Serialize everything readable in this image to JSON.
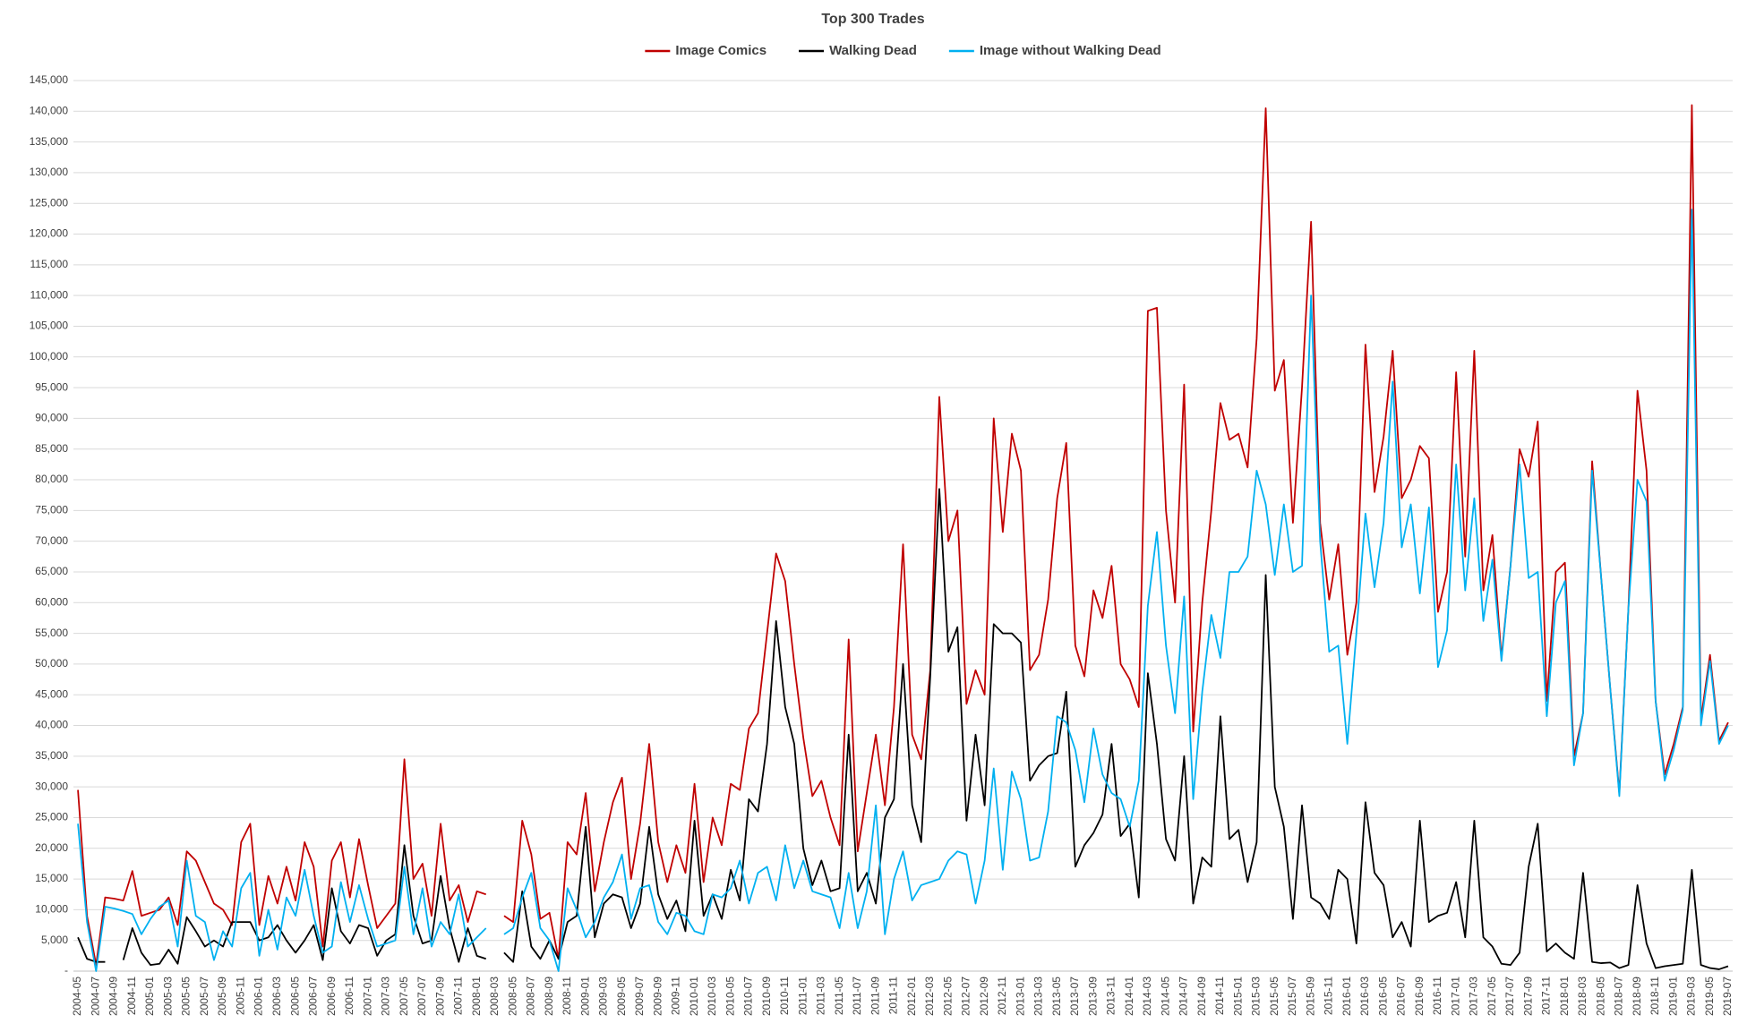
{
  "chart_data": {
    "type": "line",
    "title": "Top 300 Trades",
    "legend": "top",
    "grid": true,
    "categories": [
      "2004-05",
      null,
      "2004-07",
      null,
      "2004-09",
      null,
      "2004-11",
      null,
      "2005-01",
      null,
      "2005-03",
      null,
      "2005-05",
      null,
      "2005-07",
      null,
      "2005-09",
      null,
      "2005-11",
      null,
      "2006-01",
      null,
      "2006-03",
      null,
      "2006-05",
      null,
      "2006-07",
      null,
      "2006-09",
      null,
      "2006-11",
      null,
      "2007-01",
      null,
      "2007-03",
      null,
      "2007-05",
      null,
      "2007-07",
      null,
      "2007-09",
      null,
      "2007-11",
      null,
      "2008-01",
      null,
      "2008-03",
      null,
      "2008-05",
      null,
      "2008-07",
      null,
      "2008-09",
      null,
      "2008-11",
      null,
      "2009-01",
      null,
      "2009-03",
      null,
      "2009-05",
      null,
      "2009-07",
      null,
      "2009-09",
      null,
      "2009-11",
      null,
      "2010-01",
      null,
      "2010-03",
      null,
      "2010-05",
      null,
      "2010-07",
      null,
      "2010-09",
      null,
      "2010-11",
      null,
      "2011-01",
      null,
      "2011-03",
      null,
      "2011-05",
      null,
      "2011-07",
      null,
      "2011-09",
      null,
      "2011-11",
      null,
      "2012-01",
      null,
      "2012-03",
      null,
      "2012-05",
      null,
      "2012-07",
      null,
      "2012-09",
      null,
      "2012-11",
      null,
      "2013-01",
      null,
      "2013-03",
      null,
      "2013-05",
      null,
      "2013-07",
      null,
      "2013-09",
      null,
      "2013-11",
      null,
      "2014-01",
      null,
      "2014-03",
      null,
      "2014-05",
      null,
      "2014-07",
      null,
      "2014-09",
      null,
      "2014-11",
      null,
      "2015-01",
      null,
      "2015-03",
      null,
      "2015-05",
      null,
      "2015-07",
      null,
      "2015-09",
      null,
      "2015-11",
      null,
      "2016-01",
      null,
      "2016-03",
      null,
      "2016-05",
      null,
      "2016-07",
      null,
      "2016-09",
      null,
      "2016-11",
      null,
      "2017-01",
      null,
      "2017-03",
      null,
      "2017-05",
      null,
      "2017-07",
      null,
      "2017-09",
      null,
      "2017-11",
      null,
      "2018-01",
      null,
      "2018-03",
      null,
      "2018-05",
      null,
      "2018-07",
      null,
      "2018-09",
      null,
      "2018-11",
      null,
      "2019-01",
      null,
      "2019-03",
      null,
      "2019-05",
      null,
      "2019-07"
    ],
    "series": [
      {
        "name": "Image Comics",
        "color": "#c00000",
        "values": [
          29500,
          9000,
          1000,
          12000,
          11800,
          11500,
          16300,
          9000,
          9500,
          10000,
          12000,
          7500,
          19500,
          18000,
          14500,
          11000,
          10000,
          7500,
          21000,
          24000,
          7500,
          15500,
          11000,
          17000,
          11500,
          21000,
          17000,
          4000,
          18000,
          21000,
          12000,
          21500,
          14000,
          7000,
          9000,
          11000,
          34500,
          15000,
          17500,
          9000,
          24000,
          11500,
          14000,
          8000,
          13000,
          12500,
          null,
          9000,
          8000,
          24500,
          19000,
          8500,
          9500,
          2000,
          21000,
          19000,
          29000,
          13000,
          21000,
          27500,
          31500,
          15000,
          24000,
          37000,
          21000,
          14500,
          20500,
          16000,
          30500,
          14500,
          25000,
          20500,
          30500,
          29500,
          39500,
          42000,
          55000,
          68000,
          63500,
          50000,
          38000,
          28500,
          31000,
          25000,
          20500,
          54000,
          19500,
          29000,
          38500,
          27000,
          43000,
          69500,
          38500,
          34500,
          49000,
          93500,
          70000,
          75000,
          43500,
          49000,
          45000,
          90000,
          71500,
          87500,
          81500,
          49000,
          51500,
          60500,
          77000,
          86000,
          53000,
          48000,
          62000,
          57500,
          66000,
          50000,
          47500,
          43000,
          107500,
          108000,
          75000,
          60000,
          95500,
          39000,
          60000,
          75000,
          92500,
          86500,
          87500,
          82000,
          103000,
          140500,
          94500,
          99500,
          73000,
          95000,
          122000,
          73000,
          60500,
          69500,
          51500,
          60000,
          102000,
          78000,
          87000,
          101000,
          77000,
          80000,
          85500,
          83500,
          58500,
          65000,
          97500,
          67500,
          101000,
          62000,
          71000,
          51000,
          66000,
          85000,
          80500,
          89500,
          44000,
          65000,
          66500,
          35000,
          42000,
          83000,
          64000,
          46000,
          29000,
          59000,
          94500,
          81500,
          44000,
          32000,
          37000,
          43000,
          141000,
          41000,
          51500,
          37500,
          40500
        ]
      },
      {
        "name": "Walking Dead",
        "color": "#000000",
        "values": [
          5500,
          2000,
          1500,
          1500,
          null,
          1800,
          7000,
          3000,
          1000,
          1200,
          3500,
          1200,
          8800,
          6500,
          4000,
          5000,
          4000,
          8000,
          8000,
          8000,
          5000,
          5500,
          7500,
          5000,
          3000,
          5000,
          7500,
          1800,
          13500,
          6500,
          4500,
          7500,
          7000,
          2500,
          5000,
          6000,
          20500,
          9000,
          4500,
          5000,
          15500,
          7000,
          1500,
          7000,
          2500,
          2000,
          null,
          3000,
          1500,
          13000,
          4000,
          2000,
          5000,
          2000,
          8000,
          9000,
          23500,
          5500,
          11000,
          12500,
          12000,
          7000,
          11000,
          23500,
          12500,
          8500,
          11500,
          6500,
          24500,
          9000,
          12500,
          8500,
          16500,
          11500,
          28000,
          26000,
          37000,
          57000,
          43000,
          37000,
          20000,
          14000,
          18000,
          13000,
          13500,
          38500,
          13000,
          16000,
          11000,
          25000,
          28000,
          50000,
          27000,
          21000,
          48000,
          78500,
          52000,
          56000,
          24500,
          38500,
          27000,
          56500,
          55000,
          55000,
          53500,
          31000,
          33500,
          35000,
          35500,
          45500,
          17000,
          20500,
          22500,
          25500,
          37000,
          22000,
          24000,
          12000,
          48500,
          37000,
          21500,
          18000,
          35000,
          11000,
          18500,
          17000,
          41500,
          21500,
          23000,
          14500,
          21000,
          64500,
          30000,
          23500,
          8500,
          27000,
          12000,
          11000,
          8500,
          16500,
          15000,
          4500,
          27500,
          16000,
          14000,
          5500,
          8000,
          4000,
          24500,
          8000,
          9000,
          9500,
          14500,
          5500,
          24500,
          5500,
          4000,
          1200,
          1000,
          3000,
          17000,
          24000,
          3200,
          4500,
          3000,
          2000,
          16000,
          1500,
          1300,
          1400,
          500,
          1000,
          14000,
          4500,
          500,
          800,
          1000,
          1200,
          16500,
          1000,
          500,
          300,
          800
        ]
      },
      {
        "name": "Image without Walking Dead",
        "color": "#00b0f0",
        "values": [
          24000,
          8000,
          0,
          10500,
          10200,
          9800,
          9300,
          6000,
          8500,
          10500,
          11500,
          4000,
          18000,
          9000,
          8000,
          1800,
          6500,
          4000,
          13500,
          16000,
          2500,
          10000,
          3500,
          12000,
          9000,
          16500,
          9000,
          3000,
          4000,
          14500,
          8000,
          14000,
          8500,
          4000,
          4500,
          5000,
          17000,
          6000,
          13500,
          4000,
          8000,
          6000,
          12500,
          4000,
          5500,
          7000,
          null,
          6000,
          7000,
          12000,
          16000,
          7000,
          5000,
          0,
          13500,
          10000,
          5500,
          8000,
          12000,
          14500,
          19000,
          8500,
          13500,
          14000,
          8000,
          6000,
          9500,
          9000,
          6500,
          6000,
          12500,
          12000,
          13500,
          18000,
          11000,
          16000,
          17000,
          11500,
          20500,
          13500,
          18000,
          13000,
          12500,
          12000,
          7000,
          16000,
          7000,
          13000,
          27000,
          6000,
          15000,
          19500,
          11500,
          14000,
          14500,
          15000,
          18000,
          19500,
          19000,
          11000,
          18000,
          33000,
          16500,
          32500,
          28000,
          18000,
          18500,
          26000,
          41500,
          40500,
          36000,
          27500,
          39500,
          32000,
          29000,
          28000,
          23500,
          31000,
          59500,
          71500,
          53000,
          42000,
          61000,
          28000,
          45500,
          58000,
          51000,
          65000,
          65000,
          67500,
          81500,
          76000,
          64500,
          76000,
          65000,
          66000,
          110000,
          70000,
          52000,
          53000,
          37000,
          55000,
          74500,
          62500,
          73000,
          96000,
          69000,
          76000,
          61500,
          75500,
          49500,
          55500,
          82500,
          62000,
          77000,
          57000,
          67000,
          50500,
          66000,
          82500,
          64000,
          65000,
          41500,
          60000,
          63500,
          33500,
          42000,
          81500,
          64000,
          46000,
          28500,
          59000,
          80000,
          76500,
          44000,
          31000,
          36000,
          42500,
          124000,
          40000,
          50500,
          37000,
          40000
        ]
      }
    ],
    "ylim": [
      0,
      145000
    ],
    "yticks": [
      {
        "value": 0,
        "label": "-"
      },
      {
        "value": 5000,
        "label": "5,000"
      },
      {
        "value": 10000,
        "label": "10,000"
      },
      {
        "value": 15000,
        "label": "15,000"
      },
      {
        "value": 20000,
        "label": "20,000"
      },
      {
        "value": 25000,
        "label": "25,000"
      },
      {
        "value": 30000,
        "label": "30,000"
      },
      {
        "value": 35000,
        "label": "35,000"
      },
      {
        "value": 40000,
        "label": "40,000"
      },
      {
        "value": 45000,
        "label": "45,000"
      },
      {
        "value": 50000,
        "label": "50,000"
      },
      {
        "value": 55000,
        "label": "55,000"
      },
      {
        "value": 60000,
        "label": "60,000"
      },
      {
        "value": 65000,
        "label": "65,000"
      },
      {
        "value": 70000,
        "label": "70,000"
      },
      {
        "value": 75000,
        "label": "75,000"
      },
      {
        "value": 80000,
        "label": "80,000"
      },
      {
        "value": 85000,
        "label": "85,000"
      },
      {
        "value": 90000,
        "label": "90,000"
      },
      {
        "value": 95000,
        "label": "95,000"
      },
      {
        "value": 100000,
        "label": "100,000"
      },
      {
        "value": 105000,
        "label": "105,000"
      },
      {
        "value": 110000,
        "label": "110,000"
      },
      {
        "value": 115000,
        "label": "115,000"
      },
      {
        "value": 120000,
        "label": "120,000"
      },
      {
        "value": 125000,
        "label": "125,000"
      },
      {
        "value": 130000,
        "label": "130,000"
      },
      {
        "value": 135000,
        "label": "135,000"
      },
      {
        "value": 140000,
        "label": "140,000"
      },
      {
        "value": 145000,
        "label": "145,000"
      }
    ]
  }
}
